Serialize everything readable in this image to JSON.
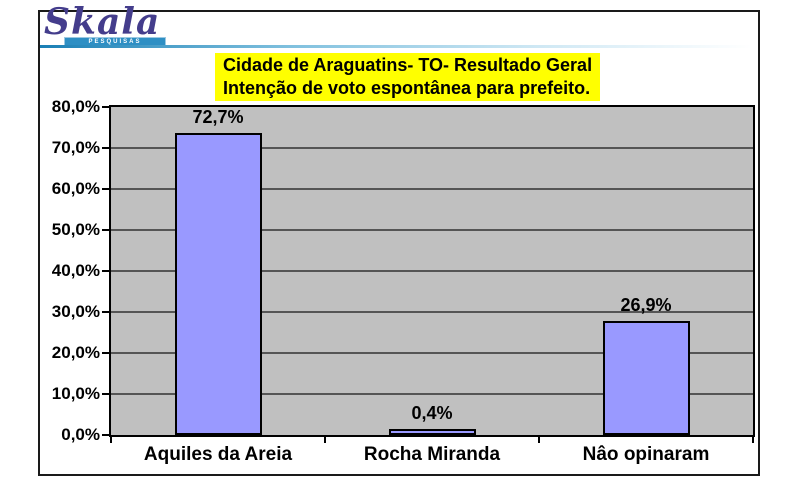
{
  "logo": {
    "name": "Skala",
    "tagline": "PESQUISAS"
  },
  "title": {
    "line1": "Cidade de Araguatins- TO- Resultado Geral",
    "line2": "Intenção de voto espontânea para prefeito."
  },
  "chart_data": {
    "type": "bar",
    "title": "Cidade de Araguatins- TO- Resultado Geral Intenção de voto espontânea para prefeito.",
    "categories": [
      "Aquiles da Areia",
      "Rocha Miranda",
      "Nâo opinaram"
    ],
    "values": [
      72.7,
      0.4,
      26.9
    ],
    "value_labels": [
      "72,7%",
      "0,4%",
      "26,9%"
    ],
    "y_ticks": [
      {
        "value": 80,
        "label": "80,0%"
      },
      {
        "value": 70,
        "label": "70,0%"
      },
      {
        "value": 60,
        "label": "60,0%"
      },
      {
        "value": 50,
        "label": "50,0%"
      },
      {
        "value": 40,
        "label": "40,0%"
      },
      {
        "value": 30,
        "label": "30,0%"
      },
      {
        "value": 20,
        "label": "20,0%"
      },
      {
        "value": 10,
        "label": "10,0%"
      },
      {
        "value": 0,
        "label": "0,0%"
      }
    ],
    "ylim": [
      0,
      80
    ],
    "grid": true,
    "legend": "none",
    "colors": {
      "bar_fill": "#9999FF",
      "bar_border": "#000000",
      "plot_background": "#C0C0C0",
      "gridline": "#555555",
      "title_background": "#FFFF00",
      "title_text": "#000000",
      "logo_text": "#443d8c",
      "logo_banner": "#2e8fc4",
      "rule_gradient_start": "#1a7fb5"
    }
  }
}
